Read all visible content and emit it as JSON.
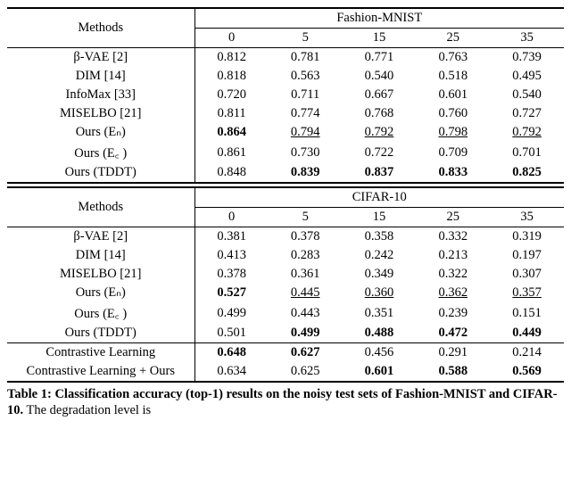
{
  "header1": {
    "methods_label": "Methods",
    "dataset": "Fashion-MNIST",
    "levels": [
      "0",
      "5",
      "15",
      "25",
      "35"
    ]
  },
  "fm_rows": [
    {
      "method": "β-VAE [2]",
      "v": [
        "0.812",
        "0.781",
        "0.771",
        "0.763",
        "0.739"
      ],
      "bold": [
        false,
        false,
        false,
        false,
        false
      ],
      "ul": [
        false,
        false,
        false,
        false,
        false
      ]
    },
    {
      "method": "DIM [14]",
      "v": [
        "0.818",
        "0.563",
        "0.540",
        "0.518",
        "0.495"
      ],
      "bold": [
        false,
        false,
        false,
        false,
        false
      ],
      "ul": [
        false,
        false,
        false,
        false,
        false
      ]
    },
    {
      "method": "InfoMax [33]",
      "v": [
        "0.720",
        "0.711",
        "0.667",
        "0.601",
        "0.540"
      ],
      "bold": [
        false,
        false,
        false,
        false,
        false
      ],
      "ul": [
        false,
        false,
        false,
        false,
        false
      ]
    },
    {
      "method": "MISELBO [21]",
      "v": [
        "0.811",
        "0.774",
        "0.768",
        "0.760",
        "0.727"
      ],
      "bold": [
        false,
        false,
        false,
        false,
        false
      ],
      "ul": [
        false,
        false,
        false,
        false,
        false
      ]
    },
    {
      "method": "Ours (Eₙ)",
      "v": [
        "0.864",
        "0.794",
        "0.792",
        "0.798",
        "0.792"
      ],
      "bold": [
        true,
        false,
        false,
        false,
        false
      ],
      "ul": [
        false,
        true,
        true,
        true,
        true
      ]
    },
    {
      "method": "Ours (E꜀ )",
      "v": [
        "0.861",
        "0.730",
        "0.722",
        "0.709",
        "0.701"
      ],
      "bold": [
        false,
        false,
        false,
        false,
        false
      ],
      "ul": [
        false,
        false,
        false,
        false,
        false
      ]
    },
    {
      "method": "Ours (TDDT)",
      "v": [
        "0.848",
        "0.839",
        "0.837",
        "0.833",
        "0.825"
      ],
      "bold": [
        false,
        true,
        true,
        true,
        true
      ],
      "ul": [
        false,
        false,
        false,
        false,
        false
      ]
    }
  ],
  "header2": {
    "methods_label": "Methods",
    "dataset": "CIFAR-10",
    "levels": [
      "0",
      "5",
      "15",
      "25",
      "35"
    ]
  },
  "cifar_rows": [
    {
      "method": "β-VAE [2]",
      "v": [
        "0.381",
        "0.378",
        "0.358",
        "0.332",
        "0.319"
      ],
      "bold": [
        false,
        false,
        false,
        false,
        false
      ],
      "ul": [
        false,
        false,
        false,
        false,
        false
      ]
    },
    {
      "method": "DIM [14]",
      "v": [
        "0.413",
        "0.283",
        "0.242",
        "0.213",
        "0.197"
      ],
      "bold": [
        false,
        false,
        false,
        false,
        false
      ],
      "ul": [
        false,
        false,
        false,
        false,
        false
      ]
    },
    {
      "method": "MISELBO [21]",
      "v": [
        "0.378",
        "0.361",
        "0.349",
        "0.322",
        "0.307"
      ],
      "bold": [
        false,
        false,
        false,
        false,
        false
      ],
      "ul": [
        false,
        false,
        false,
        false,
        false
      ]
    },
    {
      "method": "Ours (Eₙ)",
      "v": [
        "0.527",
        "0.445",
        "0.360",
        "0.362",
        "0.357"
      ],
      "bold": [
        true,
        false,
        false,
        false,
        false
      ],
      "ul": [
        false,
        true,
        true,
        true,
        true
      ]
    },
    {
      "method": "Ours (E꜀ )",
      "v": [
        "0.499",
        "0.443",
        "0.351",
        "0.239",
        "0.151"
      ],
      "bold": [
        false,
        false,
        false,
        false,
        false
      ],
      "ul": [
        false,
        false,
        false,
        false,
        false
      ]
    },
    {
      "method": "Ours (TDDT)",
      "v": [
        "0.501",
        "0.499",
        "0.488",
        "0.472",
        "0.449"
      ],
      "bold": [
        false,
        true,
        true,
        true,
        true
      ],
      "ul": [
        false,
        false,
        false,
        false,
        false
      ]
    }
  ],
  "extra_rows": [
    {
      "method": "Contrastive Learning",
      "v": [
        "0.648",
        "0.627",
        "0.456",
        "0.291",
        "0.214"
      ],
      "bold": [
        true,
        true,
        false,
        false,
        false
      ],
      "ul": [
        false,
        false,
        false,
        false,
        false
      ]
    },
    {
      "method": "Contrastive Learning + Ours",
      "v": [
        "0.634",
        "0.625",
        "0.601",
        "0.588",
        "0.569"
      ],
      "bold": [
        false,
        false,
        true,
        true,
        true
      ],
      "ul": [
        false,
        false,
        false,
        false,
        false
      ]
    }
  ],
  "caption": {
    "lead": "Table 1: Classification accuracy (top-1) results on the noisy test sets of Fashion-MNIST and CIFAR-10.",
    "tail": " The degradation level is"
  }
}
